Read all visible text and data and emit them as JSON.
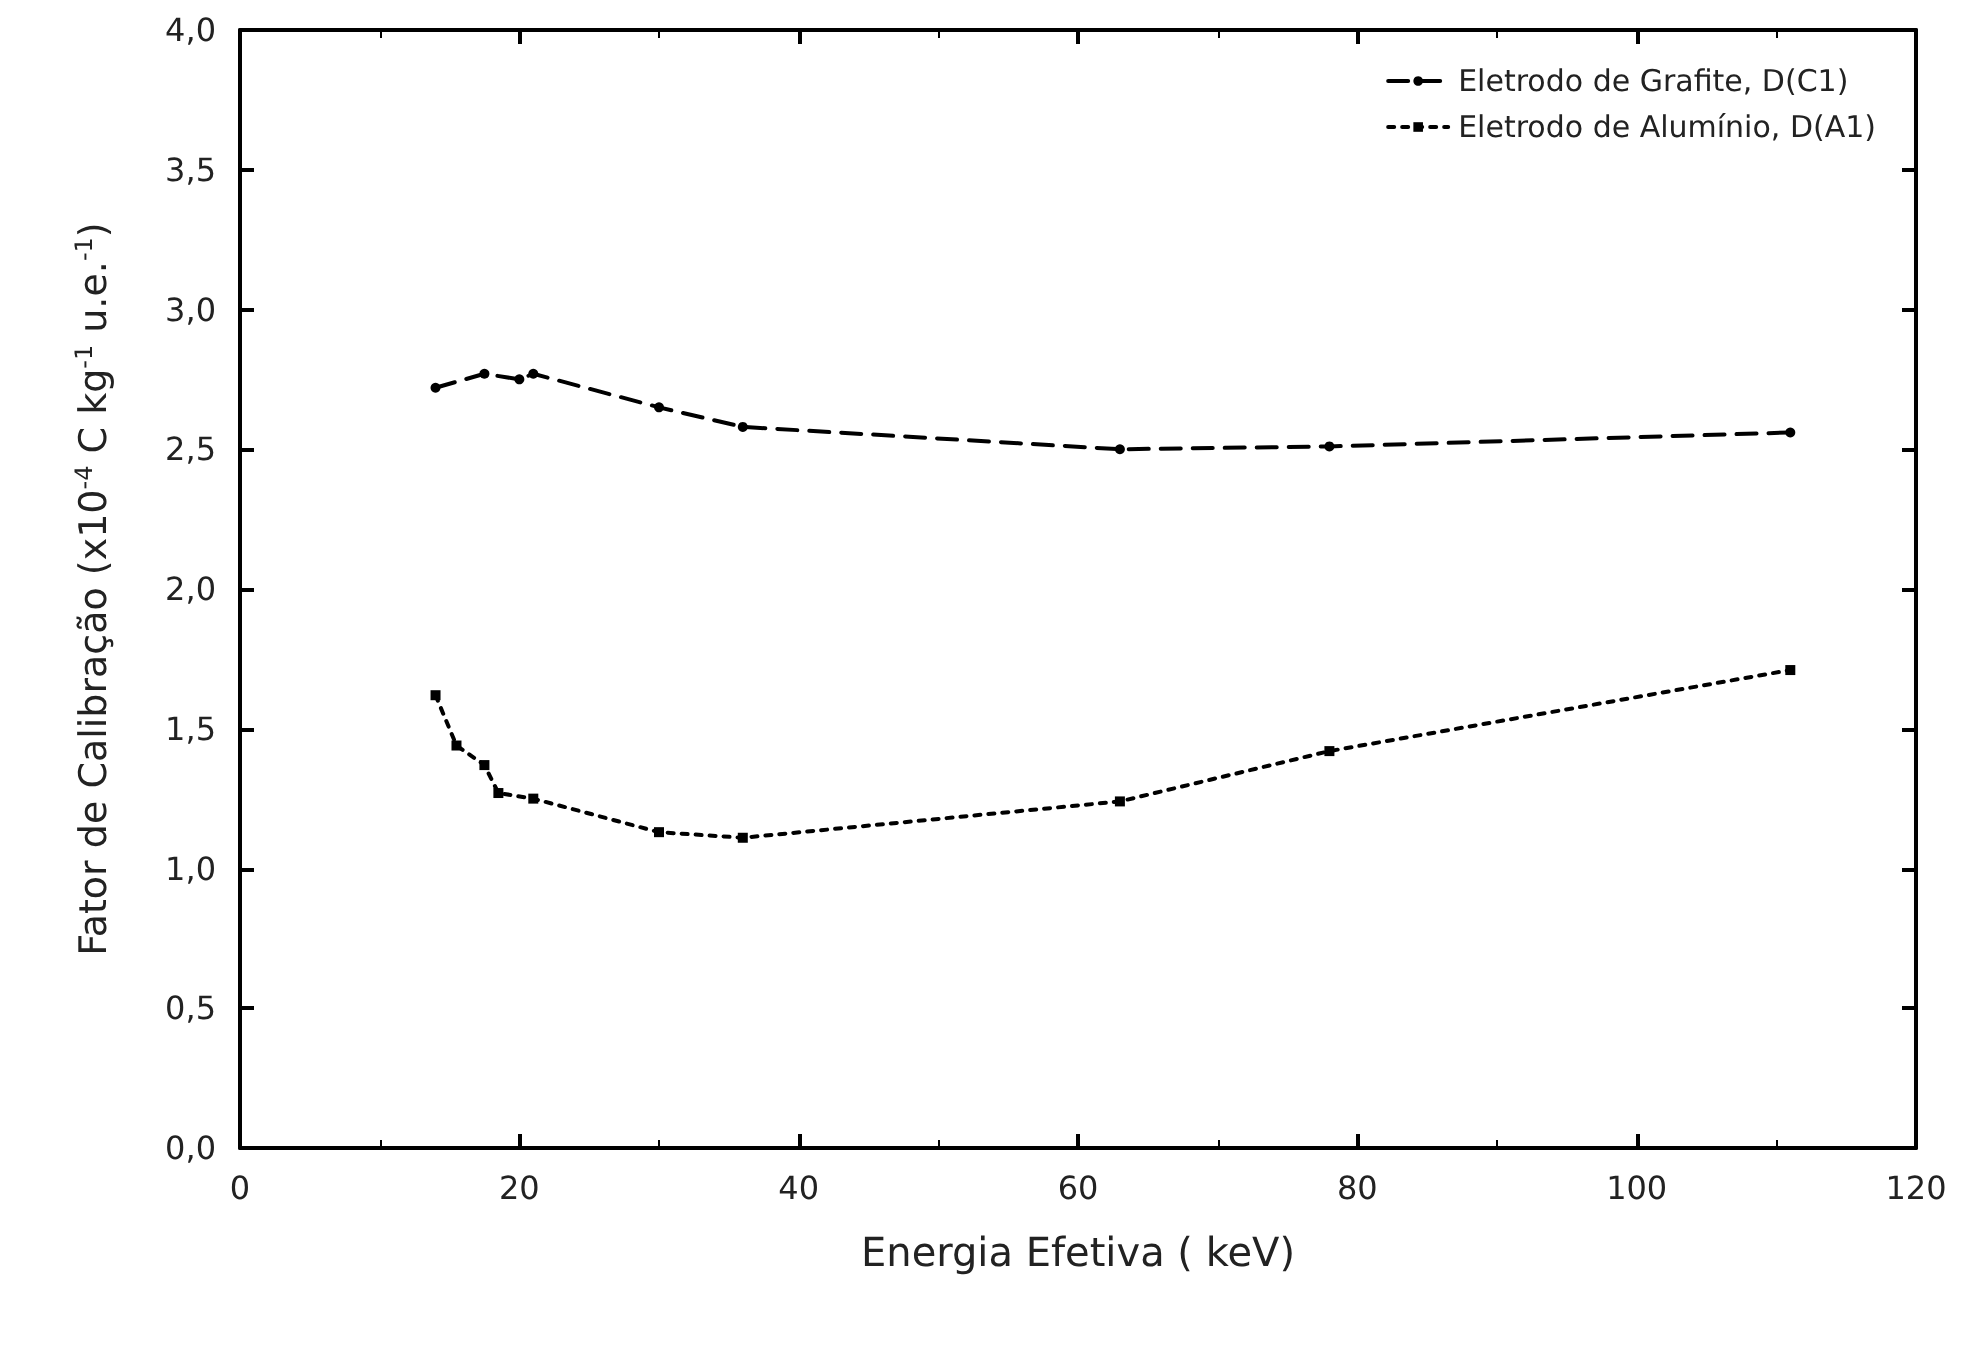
{
  "chart_data": {
    "type": "line",
    "xlabel": "Energia Efetiva ( keV)",
    "ylabel": "Fator de Calibração (x10$^{-4}$ C kg$^{-1}$ u.e.$^{-1}$)",
    "xlim": [
      0,
      120
    ],
    "xticks": [
      0,
      20,
      40,
      60,
      80,
      100,
      120
    ],
    "ylim": [
      0,
      4
    ],
    "yticks": [
      {
        "value": 0,
        "label": "0,0"
      },
      {
        "value": 0.5,
        "label": "0,5"
      },
      {
        "value": 1,
        "label": "1,0"
      },
      {
        "value": 1.5,
        "label": "1,5"
      },
      {
        "value": 2,
        "label": "2,0"
      },
      {
        "value": 2.5,
        "label": "2,5"
      },
      {
        "value": 3,
        "label": "3,0"
      },
      {
        "value": 3.5,
        "label": "3,5"
      },
      {
        "value": 4,
        "label": "4,0"
      }
    ],
    "grid": false,
    "legend": "top right",
    "series": [
      {
        "name": "Eletrodo de Grafite, D(C1)",
        "color": "#000000",
        "marker": "circle",
        "line_style": "dashed",
        "x": [
          14,
          17.5,
          20,
          21,
          30,
          36,
          63,
          78,
          111
        ],
        "values": [
          2.72,
          2.77,
          2.75,
          2.77,
          2.65,
          2.58,
          2.5,
          2.51,
          2.56
        ]
      },
      {
        "name": "Eletrodo de Alumínio, D(A1)",
        "color": "#000000",
        "marker": "square",
        "line_style": "dotted",
        "x": [
          14,
          15.5,
          17.5,
          18.5,
          21,
          30,
          36,
          63,
          78,
          111
        ],
        "values": [
          1.62,
          1.44,
          1.37,
          1.27,
          1.25,
          1.13,
          1.11,
          1.24,
          1.42,
          1.71
        ]
      }
    ]
  }
}
